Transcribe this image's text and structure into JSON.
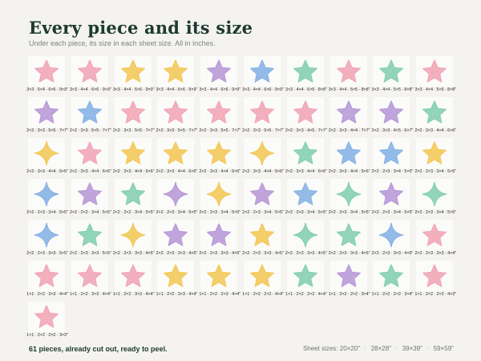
{
  "header": {
    "title": "Every piece and its size",
    "subtitle": "Under each piece, its size in each sheet size. All in inches."
  },
  "pieces": [
    {
      "shape": "star",
      "color": "pink",
      "size": "3×3 · 5×4 · 6×6 · 9×9\""
    },
    {
      "shape": "star",
      "color": "pink",
      "size": "3×3 · 4×4 · 6×6 · 9×9\""
    },
    {
      "shape": "star",
      "color": "yellow",
      "size": "3×3 · 4×4 · 6×6 · 9×9\""
    },
    {
      "shape": "star",
      "color": "yellow",
      "size": "3×3 · 4×4 · 6×6 · 9×9\""
    },
    {
      "shape": "star",
      "color": "purple",
      "size": "3×3 · 4×4 · 6×6 · 9×9\""
    },
    {
      "shape": "star",
      "color": "blue",
      "size": "3×3 · 4×4 · 6×6 · 9×9\""
    },
    {
      "shape": "star",
      "color": "teal",
      "size": "3×3 · 4×4 · 6×5 · 8×8\""
    },
    {
      "shape": "star",
      "color": "pink",
      "size": "3×3 · 4×4 · 5×5 · 8×8\""
    },
    {
      "shape": "star",
      "color": "teal",
      "size": "3×3 · 4×4 · 5×5 · 8×8\""
    },
    {
      "shape": "star",
      "color": "pink",
      "size": "3×3 · 4×4 · 5×5 · 8×8\""
    },
    {
      "shape": "star",
      "color": "purple",
      "size": "2×2 · 3×3 · 5×5 · 7×7\""
    },
    {
      "shape": "star",
      "color": "blue",
      "size": "2×2 · 3×3 · 5×5 · 7×7\""
    },
    {
      "shape": "star",
      "color": "pink",
      "size": "2×2 · 3×3 · 5×5 · 7×7\""
    },
    {
      "shape": "star",
      "color": "pink",
      "size": "2×2 · 3×3 · 5×5 · 7×7\""
    },
    {
      "shape": "star",
      "color": "pink",
      "size": "2×2 · 3×3 · 5×5 · 7×7\""
    },
    {
      "shape": "star",
      "color": "pink",
      "size": "2×2 · 3×3 · 5×5 · 7×7\""
    },
    {
      "shape": "star",
      "color": "pink",
      "size": "2×2 · 3×3 · 4×5 · 7×7\""
    },
    {
      "shape": "star",
      "color": "purple",
      "size": "2×2 · 3×3 · 4×4 · 7×7\""
    },
    {
      "shape": "star",
      "color": "purple",
      "size": "2×2 · 3×3 · 4×5 · 6×7\""
    },
    {
      "shape": "star",
      "color": "teal",
      "size": "2×2 · 3×3 · 4×4 · 6×6\""
    },
    {
      "shape": "sparkle",
      "color": "yellow",
      "size": "2×2 · 3×3 · 4×4 · 6×6\""
    },
    {
      "shape": "star",
      "color": "pink",
      "size": "2×2 · 3×3 · 4×4 · 6×6\""
    },
    {
      "shape": "star",
      "color": "yellow",
      "size": "2×2 · 3×3 · 4×4 · 6×6\""
    },
    {
      "shape": "star",
      "color": "yellow",
      "size": "2×2 · 3×3 · 4×4 · 6×6\""
    },
    {
      "shape": "star",
      "color": "yellow",
      "size": "2×2 · 3×3 · 4×4 · 6×6\""
    },
    {
      "shape": "sparkle",
      "color": "yellow",
      "size": "2×2 · 3×3 · 4×4 · 5×6\""
    },
    {
      "shape": "star",
      "color": "teal",
      "size": "2×2 · 3×3 · 4×4 · 6×6\""
    },
    {
      "shape": "star",
      "color": "blue",
      "size": "2×2 · 3×3 · 4×4 · 5×6\""
    },
    {
      "shape": "star",
      "color": "blue",
      "size": "2×2 · 2×3 · 3×4 · 5×5\""
    },
    {
      "shape": "star",
      "color": "yellow",
      "size": "2×2 · 2×3 · 3×4 · 5×5\""
    },
    {
      "shape": "sparkle",
      "color": "blue",
      "size": "2×2 · 2×3 · 3×4 · 5×5\""
    },
    {
      "shape": "star",
      "color": "purple",
      "size": "2×2 · 2×2 · 3×4 · 5×5\""
    },
    {
      "shape": "star",
      "color": "teal",
      "size": "2×2 · 2×2 · 3×4 · 5×5\""
    },
    {
      "shape": "sparkle",
      "color": "purple",
      "size": "2×2 · 2×3 · 3×4 · 5×5\""
    },
    {
      "shape": "sparkle",
      "color": "yellow",
      "size": "2×2 · 2×3 · 3×4 · 5×5\""
    },
    {
      "shape": "star",
      "color": "purple",
      "size": "2×2 · 2×3 · 3×4 · 5×5\""
    },
    {
      "shape": "star",
      "color": "blue",
      "size": "2×2 · 2×3 · 3×4 · 5×5\""
    },
    {
      "shape": "sparkle",
      "color": "teal",
      "size": "2×2 · 2×3 · 3×4 · 5×5\""
    },
    {
      "shape": "star",
      "color": "purple",
      "size": "2×2 · 2×3 · 3×4 · 5×5\""
    },
    {
      "shape": "sparkle",
      "color": "teal",
      "size": "2×2 · 2×3 · 3×4 · 5×5\""
    },
    {
      "shape": "sparkle",
      "color": "blue",
      "size": "2×2 · 2×3 · 3×3 · 5×5\""
    },
    {
      "shape": "star",
      "color": "teal",
      "size": "2×2 · 2×3 · 3×3 · 5×5\""
    },
    {
      "shape": "sparkle",
      "color": "yellow",
      "size": "2×2 · 2×3 · 3×3 · 4×5\""
    },
    {
      "shape": "star",
      "color": "purple",
      "size": "2×2 · 2×3 · 3×3 · 4×5\""
    },
    {
      "shape": "star",
      "color": "purple",
      "size": "2×2 · 2×3 · 3×3 · 4×5\""
    },
    {
      "shape": "star",
      "color": "yellow",
      "size": "2×2 · 2×3 · 3×3 · 4×5\""
    },
    {
      "shape": "sparkle",
      "color": "teal",
      "size": "2×2 · 2×3 · 3×3 · 4×5\""
    },
    {
      "shape": "star",
      "color": "teal",
      "size": "2×2 · 2×3 · 3×3 · 4×5\""
    },
    {
      "shape": "sparkle",
      "color": "blue",
      "size": "2×2 · 2×3 · 3×3 · 4×5\""
    },
    {
      "shape": "star",
      "color": "pink",
      "size": "2×2 · 2×3 · 3×3 · 4×4\""
    },
    {
      "shape": "star",
      "color": "pink",
      "size": "1×1 · 2×2 · 3×3 · 4×4\""
    },
    {
      "shape": "star",
      "color": "pink",
      "size": "1×1 · 2×2 · 3×3 · 4×4\""
    },
    {
      "shape": "star",
      "color": "pink",
      "size": "1×1 · 2×2 · 3×3 · 4×4\""
    },
    {
      "shape": "star",
      "color": "yellow",
      "size": "1×1 · 2×2 · 3×3 · 4×4\""
    },
    {
      "shape": "star",
      "color": "yellow",
      "size": "1×1 · 2×2 · 2×3 · 4×4\""
    },
    {
      "shape": "star",
      "color": "yellow",
      "size": "1×1 · 2×2 · 2×2 · 4×4\""
    },
    {
      "shape": "star",
      "color": "teal",
      "size": "1×1 · 2×2 · 2×2 · 4×4\""
    },
    {
      "shape": "star",
      "color": "purple",
      "size": "1×1 · 2×2 · 2×2 · 3×4\""
    },
    {
      "shape": "star",
      "color": "teal",
      "size": "1×1 · 2×2 · 2×2 · 3×4\""
    },
    {
      "shape": "star",
      "color": "pink",
      "size": "1×1 · 2×2 · 2×2 · 4×3\""
    },
    {
      "shape": "star",
      "color": "pink",
      "size": "1×1 · 2×2 · 2×2 · 3×3\""
    }
  ],
  "palette": {
    "pink": "#f1a7b8",
    "yellow": "#f3c95a",
    "purple": "#b99ad8",
    "blue": "#88b4e6",
    "teal": "#86cfb4"
  },
  "footer": {
    "count_text": "61 pieces, already cut out, ready to peel.",
    "sheet_label": "Sheet sizes: 20×20\"",
    "sheet_sizes": [
      "28×28\"",
      "39×39\"",
      "59×59\""
    ]
  }
}
